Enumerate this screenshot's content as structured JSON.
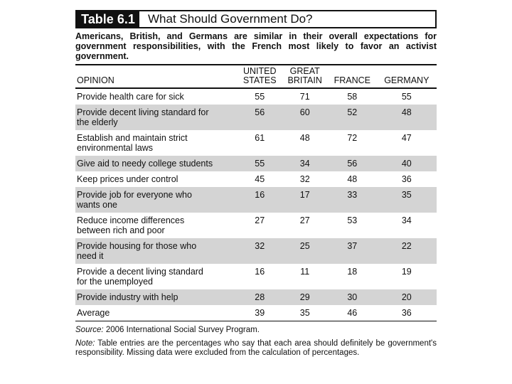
{
  "table_label": "Table 6.1",
  "table_title": "What Should Government Do?",
  "lead": "Americans, British, and Germans are similar in their overall expectations for government responsibilities, with the French most likely to favor an activist government.",
  "columns": {
    "opinion": "OPINION",
    "us_1": "UNITED",
    "us_2": "STATES",
    "gb_1": "GREAT",
    "gb_2": "BRITAIN",
    "fr": "FRANCE",
    "de": "GERMANY"
  },
  "rows": [
    {
      "l1": "Provide health care for sick",
      "l2": "",
      "us": "55",
      "gb": "71",
      "fr": "58",
      "de": "55"
    },
    {
      "l1": "Provide decent living standard for",
      "l2": "the elderly",
      "us": "56",
      "gb": "60",
      "fr": "52",
      "de": "48"
    },
    {
      "l1": "Establish and maintain strict",
      "l2": "environmental laws",
      "us": "61",
      "gb": "48",
      "fr": "72",
      "de": "47"
    },
    {
      "l1": "Give aid to needy college students",
      "l2": "",
      "us": "55",
      "gb": "34",
      "fr": "56",
      "de": "40"
    },
    {
      "l1": "Keep prices under control",
      "l2": "",
      "us": "45",
      "gb": "32",
      "fr": "48",
      "de": "36"
    },
    {
      "l1": "Provide job for everyone who",
      "l2": "wants one",
      "us": "16",
      "gb": "17",
      "fr": "33",
      "de": "35"
    },
    {
      "l1": "Reduce income differences",
      "l2": "between rich and poor",
      "us": "27",
      "gb": "27",
      "fr": "53",
      "de": "34"
    },
    {
      "l1": "Provide housing for those who",
      "l2": "need it",
      "us": "32",
      "gb": "25",
      "fr": "37",
      "de": "22"
    },
    {
      "l1": "Provide a decent living standard",
      "l2": "for the unemployed",
      "us": "16",
      "gb": "11",
      "fr": "18",
      "de": "19"
    },
    {
      "l1": "Provide industry with help",
      "l2": "",
      "us": "28",
      "gb": "29",
      "fr": "30",
      "de": "20"
    },
    {
      "l1": "Average",
      "l2": "",
      "us": "39",
      "gb": "35",
      "fr": "46",
      "de": "36"
    }
  ],
  "source_label": "Source:",
  "source_text": "2006 International Social Survey Program.",
  "note_label": "Note:",
  "note_text": "Table entries are the percentages who say that each area should definitely be government's responsibility. Missing data were excluded from the calculation of percentages."
}
